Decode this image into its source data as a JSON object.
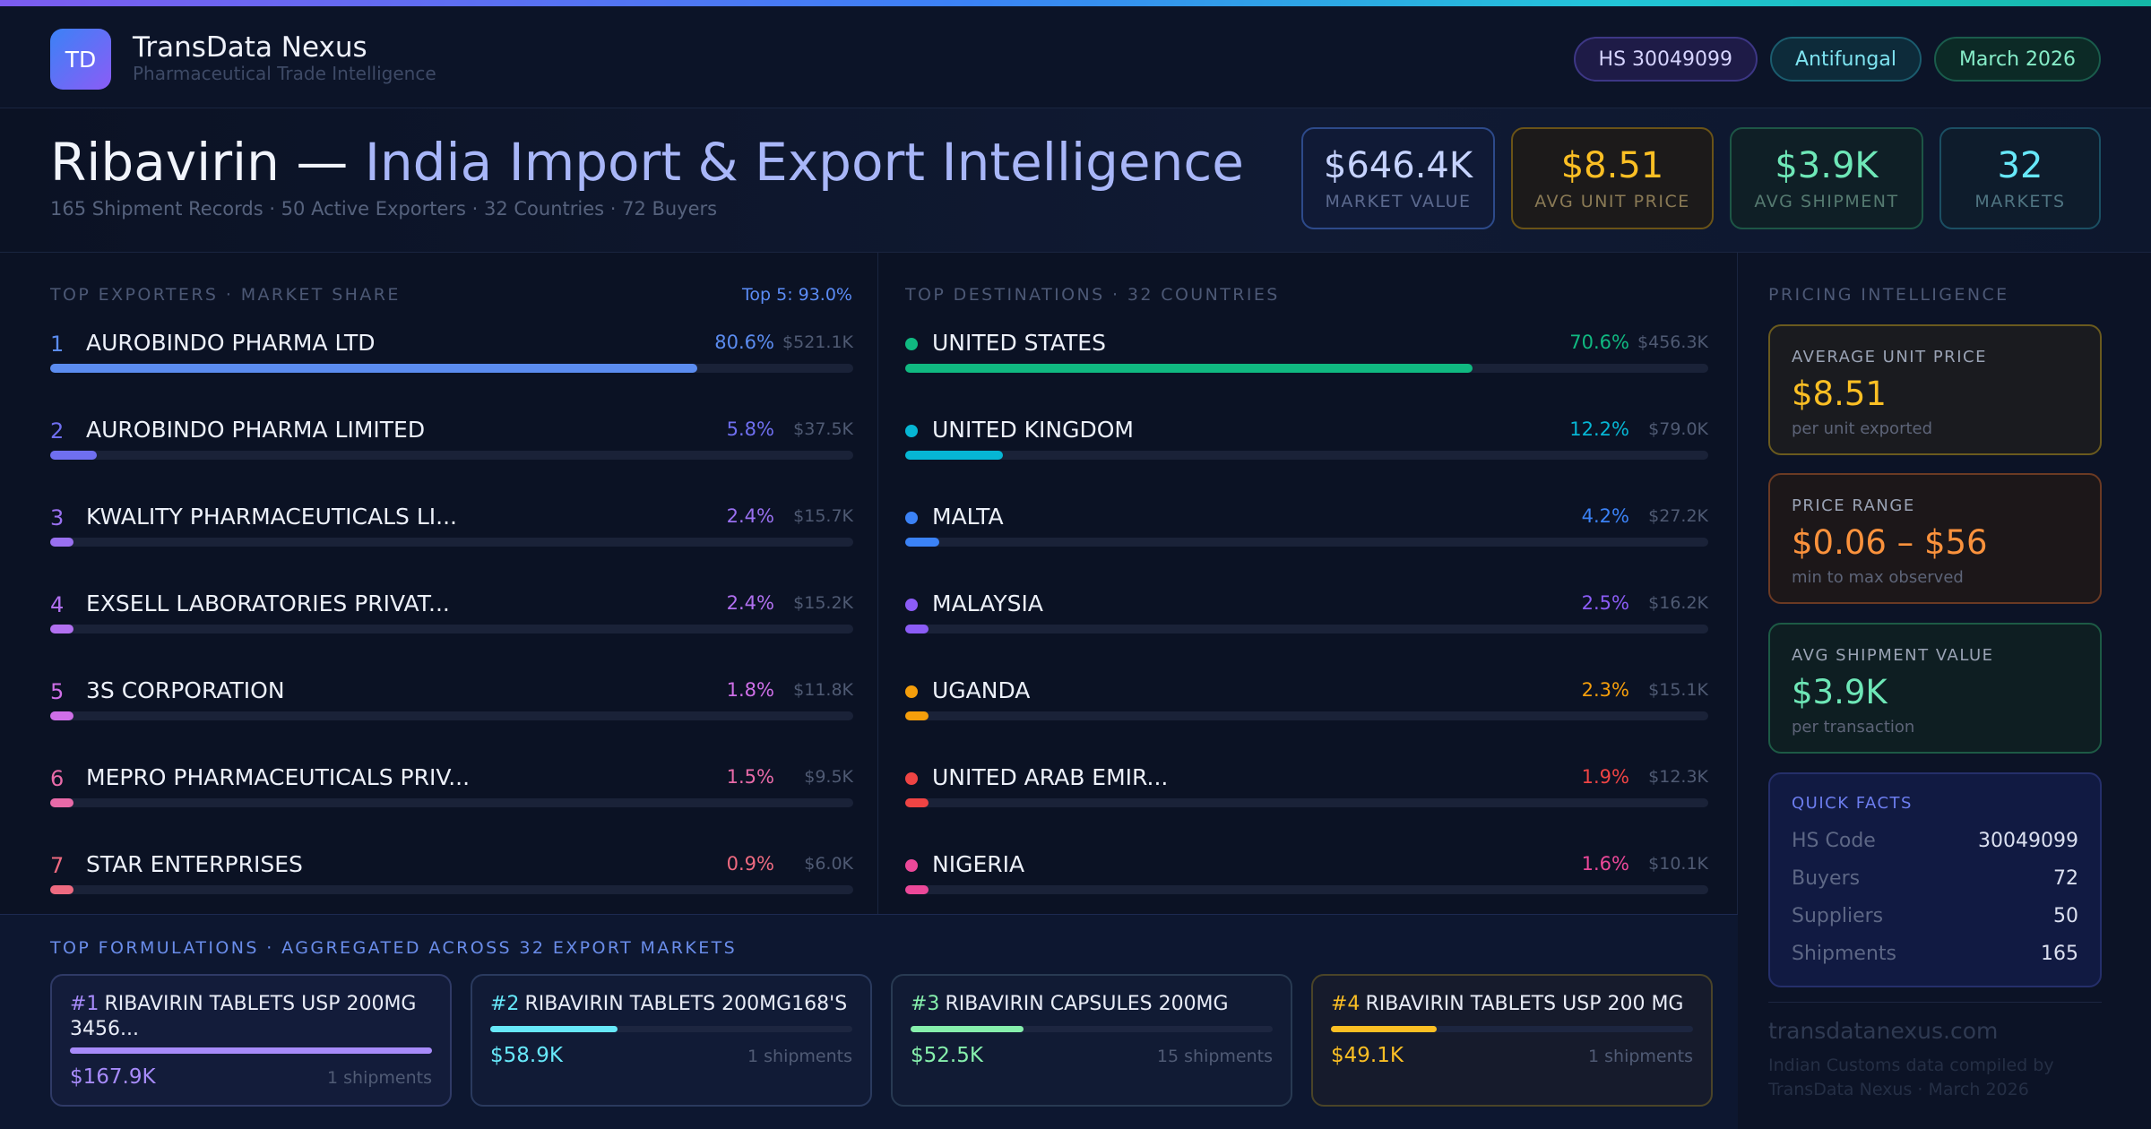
{
  "brand": {
    "logo_initials": "TD",
    "name": "TransData Nexus",
    "tagline": "Pharmaceutical Trade Intelligence"
  },
  "pills": {
    "hs": "HS 30049099",
    "category": "Antifungal",
    "date": "March 2026"
  },
  "title": {
    "part1": "Ribavirin —",
    "part2": "India Import & Export Intelligence",
    "subtitle": "165 Shipment Records · 50 Active Exporters · 32 Countries · 72 Buyers"
  },
  "kpis": [
    {
      "value": "$646.4K",
      "label": "MARKET VALUE"
    },
    {
      "value": "$8.51",
      "label": "AVG UNIT PRICE"
    },
    {
      "value": "$3.9K",
      "label": "AVG SHIPMENT"
    },
    {
      "value": "32",
      "label": "MARKETS"
    }
  ],
  "exporters": {
    "section_label": "TOP EXPORTERS · MARKET SHARE",
    "top5": "Top 5: 93.0%",
    "items": [
      {
        "rank": "1",
        "name": "AUROBINDO PHARMA LTD",
        "pct": "80.6%",
        "value": "$521.1K",
        "share": 80.6,
        "color": "#5b8cf0"
      },
      {
        "rank": "2",
        "name": "AUROBINDO PHARMA LIMITED",
        "pct": "5.8%",
        "value": "$37.5K",
        "share": 5.8,
        "color": "#6f6ff0"
      },
      {
        "rank": "3",
        "name": "KWALITY PHARMACEUTICALS LI...",
        "pct": "2.4%",
        "value": "$15.7K",
        "share": 2.4,
        "color": "#9970f0"
      },
      {
        "rank": "4",
        "name": "EXSELL LABORATORIES PRIVAT...",
        "pct": "2.4%",
        "value": "$15.2K",
        "share": 2.4,
        "color": "#b170f0"
      },
      {
        "rank": "5",
        "name": "3S CORPORATION",
        "pct": "1.8%",
        "value": "$11.8K",
        "share": 1.8,
        "color": "#cf6fe8"
      },
      {
        "rank": "6",
        "name": "MEPRO PHARMACEUTICALS PRIV...",
        "pct": "1.5%",
        "value": "$9.5K",
        "share": 1.5,
        "color": "#e86aa8"
      },
      {
        "rank": "7",
        "name": "STAR ENTERPRISES",
        "pct": "0.9%",
        "value": "$6.0K",
        "share": 0.9,
        "color": "#ee6a80"
      }
    ]
  },
  "destinations": {
    "section_label": "TOP DESTINATIONS · 32 COUNTRIES",
    "items": [
      {
        "name": "UNITED STATES",
        "pct": "70.6%",
        "value": "$456.3K",
        "share": 70.6,
        "color": "#10b981"
      },
      {
        "name": "UNITED KINGDOM",
        "pct": "12.2%",
        "value": "$79.0K",
        "share": 12.2,
        "color": "#06b6d4"
      },
      {
        "name": "MALTA",
        "pct": "4.2%",
        "value": "$27.2K",
        "share": 4.2,
        "color": "#3b82f6"
      },
      {
        "name": "MALAYSIA",
        "pct": "2.5%",
        "value": "$16.2K",
        "share": 2.5,
        "color": "#8b5cf6"
      },
      {
        "name": "UGANDA",
        "pct": "2.3%",
        "value": "$15.1K",
        "share": 2.3,
        "color": "#f59e0b"
      },
      {
        "name": "UNITED ARAB EMIR...",
        "pct": "1.9%",
        "value": "$12.3K",
        "share": 1.9,
        "color": "#ef4444"
      },
      {
        "name": "NIGERIA",
        "pct": "1.6%",
        "value": "$10.1K",
        "share": 1.6,
        "color": "#ec4899"
      }
    ]
  },
  "formulations": {
    "section_label": "TOP FORMULATIONS · AGGREGATED ACROSS 32 EXPORT MARKETS",
    "items": [
      {
        "rank": "#1",
        "name": "RIBAVIRIN TABLETS USP 200MG 3456...",
        "value": "$167.9K",
        "shipments": "1 shipments",
        "share": 100,
        "color": "#a78bfa"
      },
      {
        "rank": "#2",
        "name": "RIBAVIRIN TABLETS 200MG168'S",
        "value": "$58.9K",
        "shipments": "1 shipments",
        "share": 35.1,
        "color": "#67e8f9"
      },
      {
        "rank": "#3",
        "name": "RIBAVIRIN CAPSULES 200MG",
        "value": "$52.5K",
        "shipments": "15 shipments",
        "share": 31.3,
        "color": "#86efac"
      },
      {
        "rank": "#4",
        "name": "RIBAVIRIN TABLETS USP 200 MG",
        "value": "$49.1K",
        "shipments": "1 shipments",
        "share": 29.2,
        "color": "#fbbf24"
      }
    ]
  },
  "pricing": {
    "section_label": "PRICING INTELLIGENCE",
    "cards": [
      {
        "label": "AVERAGE UNIT PRICE",
        "value": "$8.51",
        "note": "per unit exported"
      },
      {
        "label": "PRICE RANGE",
        "value": "$0.06 – $56",
        "note": "min to max observed"
      },
      {
        "label": "AVG SHIPMENT VALUE",
        "value": "$3.9K",
        "note": "per transaction"
      }
    ],
    "facts": {
      "label": "QUICK FACTS",
      "rows": [
        {
          "key": "HS Code",
          "value": "30049099"
        },
        {
          "key": "Buyers",
          "value": "72"
        },
        {
          "key": "Suppliers",
          "value": "50"
        },
        {
          "key": "Shipments",
          "value": "165"
        }
      ]
    }
  },
  "footer": {
    "site": "transdatanexus.com",
    "credit": "Indian Customs data compiled by TransData Nexus · March 2026"
  }
}
